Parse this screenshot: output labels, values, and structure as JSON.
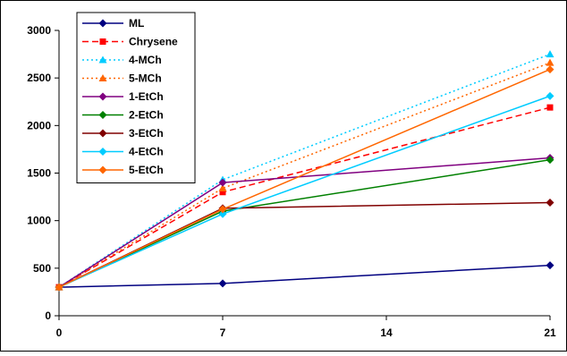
{
  "chart_data": {
    "type": "line",
    "x": [
      0,
      7,
      21
    ],
    "xticks": [
      "0",
      "7",
      "14",
      "21"
    ],
    "xtick_values": [
      0,
      7,
      14,
      21
    ],
    "yticks": [
      "0",
      "500",
      "1000",
      "1500",
      "2000",
      "2500",
      "3000"
    ],
    "ytick_values": [
      0,
      500,
      1000,
      1500,
      2000,
      2500,
      3000
    ],
    "xlim": [
      0,
      21
    ],
    "ylim": [
      0,
      3000
    ],
    "grid": false,
    "legend_placement": "top-left",
    "series": [
      {
        "name": "ML",
        "values": [
          300,
          340,
          530
        ],
        "color": "#000080",
        "dash": "solid",
        "marker": "diamond"
      },
      {
        "name": "Chrysene",
        "values": [
          300,
          1300,
          2190
        ],
        "color": "#ff0000",
        "dash": "dashed",
        "marker": "square"
      },
      {
        "name": "4-MCh",
        "values": [
          300,
          1430,
          2750
        ],
        "color": "#00ccff",
        "dash": "dotted",
        "marker": "triangle"
      },
      {
        "name": "5-MCh",
        "values": [
          300,
          1340,
          2660
        ],
        "color": "#ff6600",
        "dash": "dotted",
        "marker": "triangle"
      },
      {
        "name": "1-EtCh",
        "values": [
          300,
          1400,
          1660
        ],
        "color": "#800080",
        "dash": "solid",
        "marker": "diamond"
      },
      {
        "name": "2-EtCh",
        "values": [
          300,
          1100,
          1640
        ],
        "color": "#008000",
        "dash": "solid",
        "marker": "diamond"
      },
      {
        "name": "3-EtCh",
        "values": [
          300,
          1130,
          1190
        ],
        "color": "#800000",
        "dash": "solid",
        "marker": "diamond"
      },
      {
        "name": "4-EtCh",
        "values": [
          300,
          1070,
          2310
        ],
        "color": "#00ccff",
        "dash": "solid",
        "marker": "diamond"
      },
      {
        "name": "5-EtCh",
        "values": [
          300,
          1120,
          2590
        ],
        "color": "#ff6600",
        "dash": "solid",
        "marker": "diamond"
      }
    ]
  }
}
